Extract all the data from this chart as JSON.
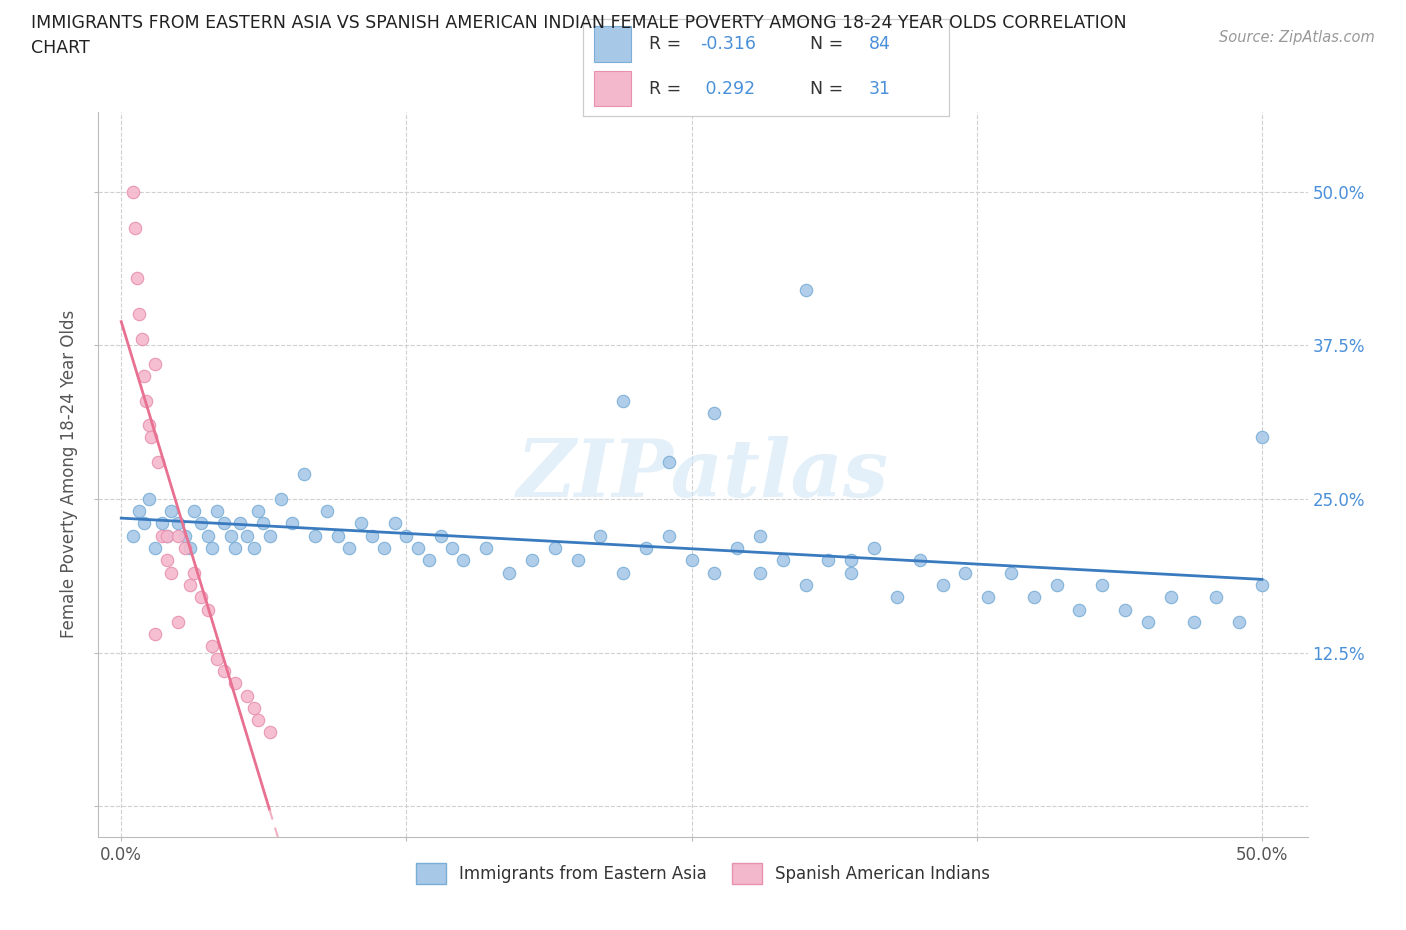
{
  "title_line1": "IMMIGRANTS FROM EASTERN ASIA VS SPANISH AMERICAN INDIAN FEMALE POVERTY AMONG 18-24 YEAR OLDS CORRELATION",
  "title_line2": "CHART",
  "source": "Source: ZipAtlas.com",
  "ylabel": "Female Poverty Among 18-24 Year Olds",
  "xlabel_blue": "Immigrants from Eastern Asia",
  "xlabel_pink": "Spanish American Indians",
  "blue_R": -0.316,
  "blue_N": 84,
  "pink_R": 0.292,
  "pink_N": 31,
  "blue_color": "#a8c8e8",
  "pink_color": "#f4b8cc",
  "blue_edge_color": "#7aaed6",
  "pink_edge_color": "#e890b0",
  "blue_line_color": "#3a7abf",
  "pink_line_color": "#e87090",
  "pink_dash_color": "#f0b0c0",
  "watermark": "ZIPatlas",
  "ytick_right_labels": [
    "",
    "12.5%",
    "25.0%",
    "37.5%",
    "50.0%"
  ],
  "ytick_vals": [
    0.0,
    0.125,
    0.25,
    0.375,
    0.5
  ],
  "xtick_vals": [
    0.0,
    0.125,
    0.25,
    0.375,
    0.5
  ],
  "xtick_labels": [
    "0.0%",
    "",
    "",
    "",
    "50.0%"
  ],
  "blue_x": [
    0.005,
    0.008,
    0.01,
    0.012,
    0.015,
    0.018,
    0.02,
    0.022,
    0.025,
    0.028,
    0.03,
    0.032,
    0.035,
    0.038,
    0.04,
    0.042,
    0.045,
    0.048,
    0.05,
    0.052,
    0.055,
    0.058,
    0.06,
    0.062,
    0.065,
    0.07,
    0.075,
    0.08,
    0.085,
    0.09,
    0.095,
    0.1,
    0.105,
    0.11,
    0.115,
    0.12,
    0.125,
    0.13,
    0.135,
    0.14,
    0.145,
    0.15,
    0.16,
    0.17,
    0.18,
    0.19,
    0.2,
    0.21,
    0.22,
    0.23,
    0.24,
    0.25,
    0.26,
    0.27,
    0.28,
    0.29,
    0.3,
    0.31,
    0.32,
    0.33,
    0.34,
    0.35,
    0.36,
    0.37,
    0.38,
    0.39,
    0.4,
    0.41,
    0.42,
    0.43,
    0.44,
    0.45,
    0.46,
    0.47,
    0.48,
    0.49,
    0.5,
    0.5,
    0.26,
    0.3,
    0.22,
    0.24,
    0.28,
    0.32
  ],
  "blue_y": [
    0.22,
    0.24,
    0.23,
    0.25,
    0.21,
    0.23,
    0.22,
    0.24,
    0.23,
    0.22,
    0.21,
    0.24,
    0.23,
    0.22,
    0.21,
    0.24,
    0.23,
    0.22,
    0.21,
    0.23,
    0.22,
    0.21,
    0.24,
    0.23,
    0.22,
    0.25,
    0.23,
    0.27,
    0.22,
    0.24,
    0.22,
    0.21,
    0.23,
    0.22,
    0.21,
    0.23,
    0.22,
    0.21,
    0.2,
    0.22,
    0.21,
    0.2,
    0.21,
    0.19,
    0.2,
    0.21,
    0.2,
    0.22,
    0.19,
    0.21,
    0.22,
    0.2,
    0.19,
    0.21,
    0.19,
    0.2,
    0.18,
    0.2,
    0.19,
    0.21,
    0.17,
    0.2,
    0.18,
    0.19,
    0.17,
    0.19,
    0.17,
    0.18,
    0.16,
    0.18,
    0.16,
    0.15,
    0.17,
    0.15,
    0.17,
    0.15,
    0.3,
    0.18,
    0.32,
    0.42,
    0.33,
    0.28,
    0.22,
    0.2
  ],
  "pink_x": [
    0.005,
    0.006,
    0.007,
    0.008,
    0.009,
    0.01,
    0.011,
    0.012,
    0.013,
    0.015,
    0.016,
    0.018,
    0.02,
    0.022,
    0.025,
    0.028,
    0.03,
    0.032,
    0.035,
    0.038,
    0.04,
    0.042,
    0.045,
    0.05,
    0.055,
    0.058,
    0.06,
    0.065,
    0.02,
    0.015,
    0.025
  ],
  "pink_y": [
    0.5,
    0.47,
    0.43,
    0.4,
    0.38,
    0.35,
    0.33,
    0.31,
    0.3,
    0.36,
    0.28,
    0.22,
    0.22,
    0.19,
    0.22,
    0.21,
    0.18,
    0.19,
    0.17,
    0.16,
    0.13,
    0.12,
    0.11,
    0.1,
    0.09,
    0.08,
    0.07,
    0.06,
    0.2,
    0.14,
    0.15
  ]
}
